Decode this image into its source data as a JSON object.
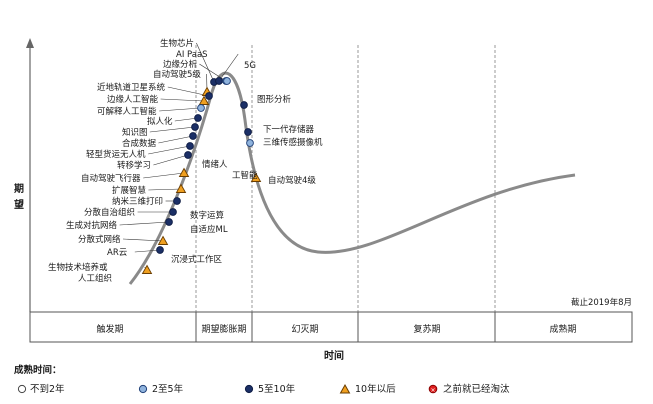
{
  "axes": {
    "y_label_top": "期",
    "y_label_bottom": "望",
    "x_label": "时间"
  },
  "date_note": "截止2019年8月",
  "phases": [
    "触发期",
    "期望膨胀期",
    "幻灭期",
    "复苏期",
    "成熟期"
  ],
  "legend": {
    "title": "成熟时间：",
    "items": [
      {
        "key": "lt2",
        "label": "不到2年",
        "fill": "#ffffff",
        "stroke": "#444444"
      },
      {
        "key": "2to5",
        "label": "2至5年",
        "fill": "#8fb3dd",
        "stroke": "#1f3f77"
      },
      {
        "key": "5to10",
        "label": "5至10年",
        "fill": "#1b2f66",
        "stroke": "#0e1c44"
      },
      {
        "key": "gt10",
        "label": "10年以后",
        "fill": "#f0a020",
        "stroke": "#6a3d00"
      },
      {
        "key": "obsolete",
        "label": "之前就已经淘汰",
        "fill": "#e02020",
        "stroke": "#8a0000"
      }
    ]
  },
  "technologies": [
    {
      "name": "生物芯片",
      "marker": "5to10"
    },
    {
      "name": "AI PaaS",
      "marker": "5to10"
    },
    {
      "name": "边缘分析",
      "marker": "2to5"
    },
    {
      "name": "自动驾驶5级",
      "marker": "gt10"
    },
    {
      "name": "近地轨道卫星系统",
      "marker": "5to10"
    },
    {
      "name": "边缘人工智能",
      "marker": "gt10"
    },
    {
      "name": "可解释人工智能",
      "marker": "2to5"
    },
    {
      "name": "拟人化",
      "marker": "5to10"
    },
    {
      "name": "知识图",
      "marker": "5to10"
    },
    {
      "name": "合成数据",
      "marker": "5to10"
    },
    {
      "name": "轻型货运无人机",
      "marker": "5to10"
    },
    {
      "name": "转移学习",
      "marker": "5to10"
    },
    {
      "name": "自动驾驶飞行器",
      "marker": "gt10"
    },
    {
      "name": "扩展智慧",
      "marker": "gt10"
    },
    {
      "name": "纳米三维打印",
      "marker": "5to10"
    },
    {
      "name": "分散自治组织",
      "marker": "5to10"
    },
    {
      "name": "生成对抗网络",
      "marker": "5to10"
    },
    {
      "name": "分散式网络",
      "marker": "gt10"
    },
    {
      "name": "AR云",
      "marker": "5to10"
    },
    {
      "name": "生物技术培养或人工组织",
      "marker": "gt10"
    },
    {
      "name": "5G",
      "marker": "2to5"
    },
    {
      "name": "图形分析",
      "marker": "5to10"
    },
    {
      "name": "下一代存储器",
      "marker": "5to10"
    },
    {
      "name": "三维传感摄像机",
      "marker": "2to5"
    },
    {
      "name": "自动驾驶4级",
      "marker": "gt10"
    },
    {
      "name": "情绪人工智能",
      "marker": "none"
    },
    {
      "name": "数字运算",
      "marker": "none"
    },
    {
      "name": "自适应ML",
      "marker": "none"
    },
    {
      "name": "沉浸式工作区",
      "marker": "none"
    }
  ]
}
